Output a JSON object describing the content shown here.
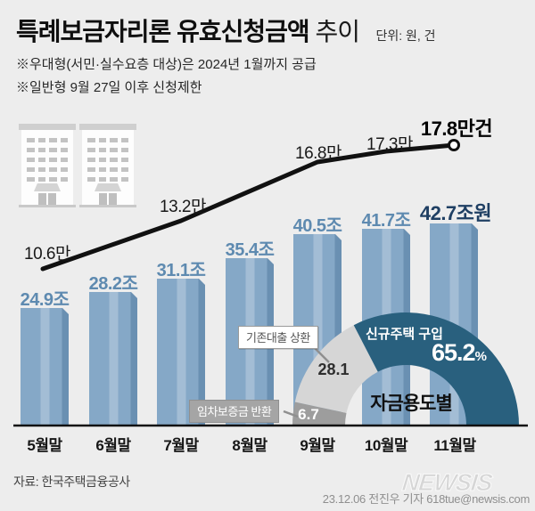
{
  "header": {
    "title_main": "특례보금자리론 유효신청금액",
    "title_sub": " 추이",
    "unit_label": "단위: 원, 건",
    "note1": "※우대형(서민·실수요층 대상)은 2024년 1월까지 공급",
    "note2": "※일반형 9월 27일 이후 신청제한"
  },
  "chart_data": [
    {
      "type": "bar",
      "title": "특례보금자리론 유효신청금액 (조원)",
      "categories": [
        "5월말",
        "6월말",
        "7월말",
        "8월말",
        "9월말",
        "10월말",
        "11월말"
      ],
      "values": [
        24.9,
        28.2,
        31.1,
        35.4,
        40.5,
        41.7,
        42.7
      ],
      "value_labels": [
        "24.9조",
        "28.2조",
        "31.1조",
        "35.4조",
        "40.5조",
        "41.7조",
        "42.7조원"
      ],
      "ylim": [
        0,
        45
      ],
      "grid": false,
      "bar_color": "#85a8c7",
      "bar_highlight": "#a3bdd5",
      "bar_shadow": "#6a90b2",
      "label_color": "#5e8ab0",
      "final_label_color": "#1f3f63"
    },
    {
      "type": "line",
      "title": "유효신청 건수 (만건)",
      "categories": [
        "5월말",
        "7월말",
        "9월말",
        "10월말",
        "11월말"
      ],
      "values": [
        10.6,
        13.2,
        16.8,
        17.3,
        17.8
      ],
      "value_labels": [
        "10.6만",
        "13.2만",
        "16.8만",
        "17.3만",
        "17.8만건"
      ],
      "line_color": "#111111",
      "marker": "open-circle-at-last-point"
    },
    {
      "type": "pie",
      "title": "자금용도별",
      "shape": "half-donut",
      "categories": [
        "신규주택 구입",
        "기존대출 상환",
        "임차보증금 반환"
      ],
      "values": [
        65.2,
        28.1,
        6.7
      ],
      "value_labels": [
        "65.2%",
        "28.1",
        "6.7"
      ],
      "slice_colors": [
        "#29607e",
        "#d6d6d6",
        "#9d9d9d"
      ],
      "center_label": "자금용도별"
    }
  ],
  "donut": {
    "label_newhome": "신규주택 구입",
    "pct_num": "65.2",
    "pct_sign": "%",
    "center": "자금용도별",
    "val_repay": "28.1",
    "val_deposit": "6.7",
    "callout_repay": "기존대출 상환",
    "callout_deposit": "임차보증금 반환"
  },
  "footer": {
    "source": "자료: 한국주택금융공사",
    "logo": "NEWSIS",
    "credit": "23.12.06 전진우 기자 618tue@newsis.com"
  }
}
